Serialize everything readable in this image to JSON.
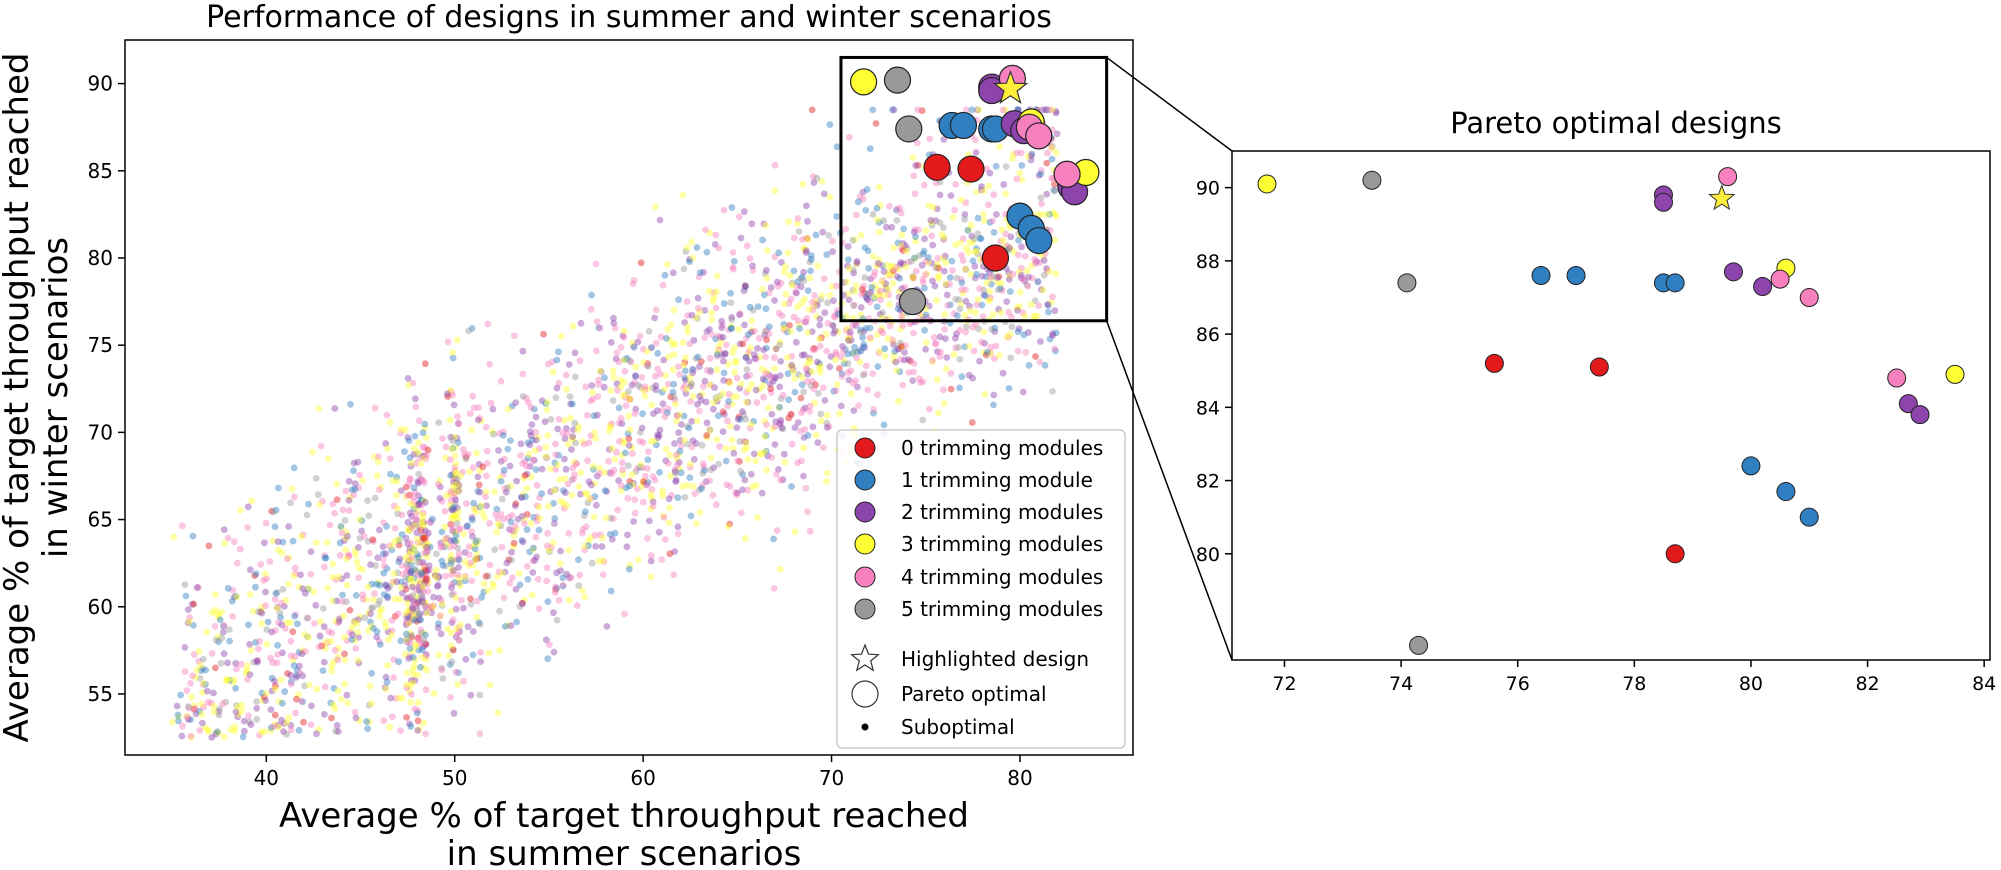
{
  "colors": {
    "red": "#e31a1c",
    "blue": "#2f7fc1",
    "purple": "#8e44ad",
    "yellow": "#ffff33",
    "pink": "#f781bf",
    "gray": "#999999",
    "star": "#ffef3a"
  },
  "chart_data": [
    {
      "type": "scatter",
      "title": "Performance of designs in summer and winter scenarios",
      "xlabel": [
        "Average % of target throughput reached",
        "in summer scenarios"
      ],
      "ylabel": [
        "Average % of target throughput reached",
        "in winter scenarios"
      ],
      "xlim": [
        32.5,
        86
      ],
      "ylim": [
        51.5,
        92.5
      ],
      "xticks": [
        "40",
        "50",
        "60",
        "70",
        "80"
      ],
      "yticks": [
        "55",
        "60",
        "65",
        "70",
        "75",
        "80",
        "85",
        "90"
      ],
      "zoom_box": {
        "x": [
          70.5,
          84.6
        ],
        "y": [
          76.4,
          91.5
        ]
      },
      "legend": {
        "location": "lower-right",
        "entries": [
          {
            "label": "0 trimming modules",
            "color_key": "red",
            "marker": "circle"
          },
          {
            "label": "1 trimming module",
            "color_key": "blue",
            "marker": "circle"
          },
          {
            "label": "2 trimming modules",
            "color_key": "purple",
            "marker": "circle"
          },
          {
            "label": "3 trimming modules",
            "color_key": "yellow",
            "marker": "circle"
          },
          {
            "label": "4 trimming modules",
            "color_key": "pink",
            "marker": "circle"
          },
          {
            "label": "5 trimming modules",
            "color_key": "gray",
            "marker": "circle"
          },
          {
            "label": "Highlighted design",
            "marker": "star"
          },
          {
            "label": "Pareto optimal",
            "marker": "large-circle"
          },
          {
            "label": "Suboptimal",
            "marker": "small-dot"
          }
        ]
      },
      "suboptimal_cloud": {
        "description": "thousands of small semi-transparent points, roughly along y = 0.62*x + 33 with spread ~6, x from 35 to 82",
        "approx_count": 3200,
        "x_range": [
          35,
          82
        ],
        "dense_columns_x": [
          48,
          50
        ]
      },
      "pareto_points": [
        {
          "x": 71.7,
          "y": 90.1,
          "series": "yellow"
        },
        {
          "x": 73.5,
          "y": 90.2,
          "series": "gray"
        },
        {
          "x": 74.1,
          "y": 87.4,
          "series": "gray"
        },
        {
          "x": 74.3,
          "y": 77.5,
          "series": "gray"
        },
        {
          "x": 75.6,
          "y": 85.2,
          "series": "red"
        },
        {
          "x": 77.4,
          "y": 85.1,
          "series": "red"
        },
        {
          "x": 78.7,
          "y": 80.0,
          "series": "red"
        },
        {
          "x": 76.4,
          "y": 87.6,
          "series": "blue"
        },
        {
          "x": 77.0,
          "y": 87.6,
          "series": "blue"
        },
        {
          "x": 78.5,
          "y": 87.4,
          "series": "blue"
        },
        {
          "x": 78.7,
          "y": 87.4,
          "series": "blue"
        },
        {
          "x": 80.0,
          "y": 82.4,
          "series": "blue"
        },
        {
          "x": 80.6,
          "y": 81.7,
          "series": "blue"
        },
        {
          "x": 81.0,
          "y": 81.0,
          "series": "blue"
        },
        {
          "x": 78.5,
          "y": 89.8,
          "series": "purple"
        },
        {
          "x": 78.5,
          "y": 89.6,
          "series": "purple"
        },
        {
          "x": 79.7,
          "y": 87.7,
          "series": "purple"
        },
        {
          "x": 80.2,
          "y": 87.3,
          "series": "purple"
        },
        {
          "x": 82.7,
          "y": 84.1,
          "series": "purple"
        },
        {
          "x": 82.9,
          "y": 83.8,
          "series": "purple"
        },
        {
          "x": 80.6,
          "y": 87.8,
          "series": "yellow"
        },
        {
          "x": 83.5,
          "y": 84.9,
          "series": "yellow"
        },
        {
          "x": 79.6,
          "y": 90.3,
          "series": "pink"
        },
        {
          "x": 80.5,
          "y": 87.5,
          "series": "pink"
        },
        {
          "x": 81.0,
          "y": 87.0,
          "series": "pink"
        },
        {
          "x": 82.5,
          "y": 84.8,
          "series": "pink"
        }
      ],
      "highlighted_design": {
        "x": 79.5,
        "y": 89.7
      }
    },
    {
      "type": "scatter",
      "title": "Pareto optimal designs",
      "xlim": [
        71.1,
        84.1
      ],
      "ylim": [
        77.1,
        91.0
      ],
      "xticks": [
        "72",
        "74",
        "76",
        "78",
        "80",
        "82",
        "84"
      ],
      "yticks": [
        "80",
        "82",
        "84",
        "86",
        "88",
        "90"
      ],
      "note": "same pareto_points and highlighted_design as the main panel"
    }
  ]
}
